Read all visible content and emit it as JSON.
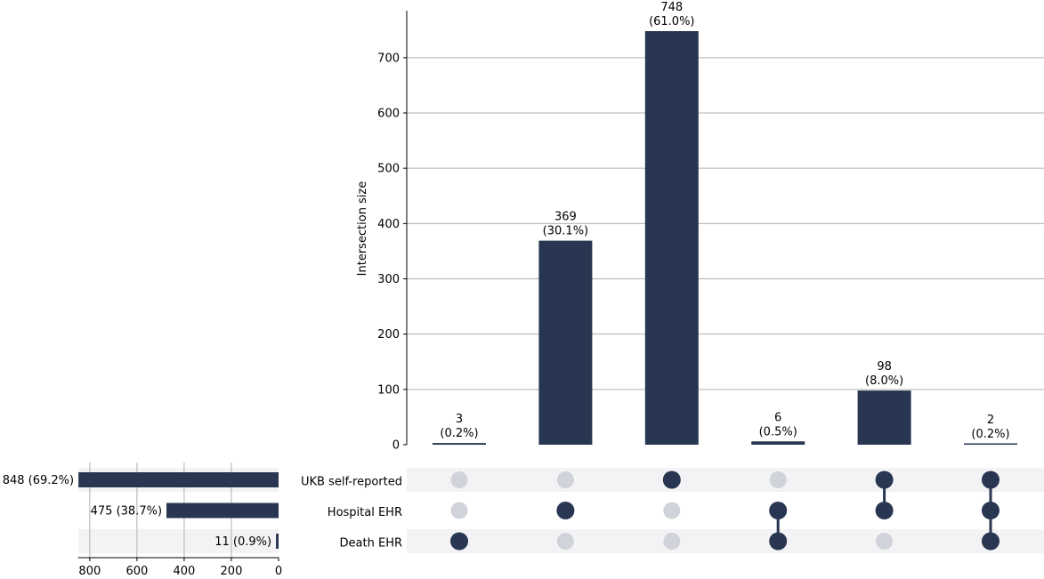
{
  "chart_data": {
    "type": "bar",
    "ylabel": "Intersection size",
    "ylim": [
      0,
      785
    ],
    "yticks": [
      0,
      100,
      200,
      300,
      400,
      500,
      600,
      700
    ],
    "grid": true,
    "colors": {
      "bar": "#283651",
      "inactive_dot": "#d1d3da",
      "stripe": "#f3f3f5",
      "grid": "#b0b0b0"
    },
    "sets": [
      {
        "name": "UKB self-reported",
        "size": 848,
        "size_label": "848 (69.2%)"
      },
      {
        "name": "Hospital EHR",
        "size": 475,
        "size_label": "475 (38.7%)"
      },
      {
        "name": "Death EHR",
        "size": 11,
        "size_label": "11 (0.9%)"
      }
    ],
    "set_size_ticks": [
      800,
      600,
      400,
      200,
      0
    ],
    "set_size_xlim": [
      850,
      0
    ],
    "intersections": [
      {
        "members": [
          false,
          false,
          true
        ],
        "value": 3,
        "count_label": "3",
        "pct_label": "(0.2%)"
      },
      {
        "members": [
          false,
          true,
          false
        ],
        "value": 369,
        "count_label": "369",
        "pct_label": "(30.1%)"
      },
      {
        "members": [
          true,
          false,
          false
        ],
        "value": 748,
        "count_label": "748",
        "pct_label": "(61.0%)"
      },
      {
        "members": [
          false,
          true,
          true
        ],
        "value": 6,
        "count_label": "6",
        "pct_label": "(0.5%)"
      },
      {
        "members": [
          true,
          true,
          false
        ],
        "value": 98,
        "count_label": "98",
        "pct_label": "(8.0%)"
      },
      {
        "members": [
          true,
          true,
          true
        ],
        "value": 2,
        "count_label": "2",
        "pct_label": "(0.2%)"
      }
    ]
  }
}
